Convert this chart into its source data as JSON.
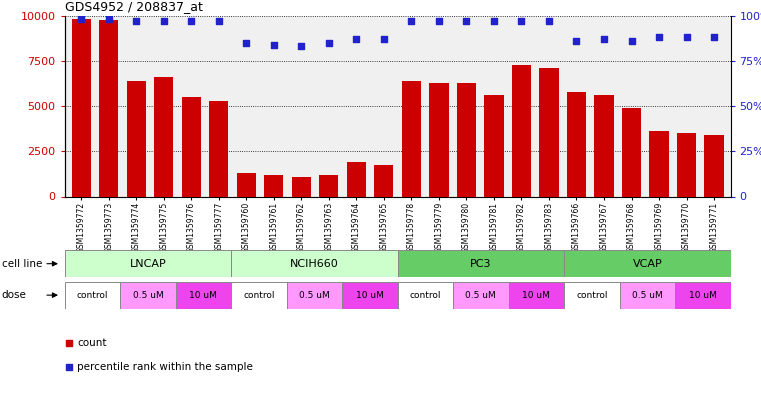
{
  "title": "GDS4952 / 208837_at",
  "samples": [
    "GSM1359772",
    "GSM1359773",
    "GSM1359774",
    "GSM1359775",
    "GSM1359776",
    "GSM1359777",
    "GSM1359760",
    "GSM1359761",
    "GSM1359762",
    "GSM1359763",
    "GSM1359764",
    "GSM1359765",
    "GSM1359778",
    "GSM1359779",
    "GSM1359780",
    "GSM1359781",
    "GSM1359782",
    "GSM1359783",
    "GSM1359766",
    "GSM1359767",
    "GSM1359768",
    "GSM1359769",
    "GSM1359770",
    "GSM1359771"
  ],
  "counts": [
    9800,
    9750,
    6400,
    6600,
    5500,
    5300,
    1300,
    1200,
    1100,
    1200,
    1900,
    1750,
    6400,
    6300,
    6300,
    5600,
    7300,
    7100,
    5800,
    5600,
    4900,
    3600,
    3500,
    3400
  ],
  "percentiles": [
    98,
    98,
    97,
    97,
    97,
    97,
    85,
    84,
    83,
    85,
    87,
    87,
    97,
    97,
    97,
    97,
    97,
    97,
    86,
    87,
    86,
    88,
    88,
    88
  ],
  "bar_color": "#cc0000",
  "dot_color": "#2222cc",
  "ylim_left": [
    0,
    10000
  ],
  "ylim_right": [
    0,
    100
  ],
  "yticks_left": [
    0,
    2500,
    5000,
    7500,
    10000
  ],
  "yticks_right": [
    0,
    25,
    50,
    75,
    100
  ],
  "cell_lines": [
    "LNCAP",
    "NCIH660",
    "PC3",
    "VCAP"
  ],
  "cell_line_colors": [
    "#ccffcc",
    "#ccffcc",
    "#66cc66",
    "#66cc66"
  ],
  "cell_line_ranges": [
    [
      0,
      6
    ],
    [
      6,
      12
    ],
    [
      12,
      18
    ],
    [
      18,
      24
    ]
  ],
  "dose_labels": [
    "control",
    "0.5 uM",
    "10 uM",
    "control",
    "0.5 uM",
    "10 uM",
    "control",
    "0.5 uM",
    "10 uM",
    "control",
    "0.5 uM",
    "10 uM"
  ],
  "dose_colors": [
    "#ffffff",
    "#ff99ff",
    "#ee44ee",
    "#ffffff",
    "#ff99ff",
    "#ee44ee",
    "#ffffff",
    "#ff99ff",
    "#ee44ee",
    "#ffffff",
    "#ff99ff",
    "#ee44ee"
  ],
  "legend_count_color": "#cc0000",
  "legend_dot_color": "#2222cc",
  "background_color": "#f0f0f0",
  "tick_color_left": "#cc0000",
  "tick_color_right": "#2222cc"
}
